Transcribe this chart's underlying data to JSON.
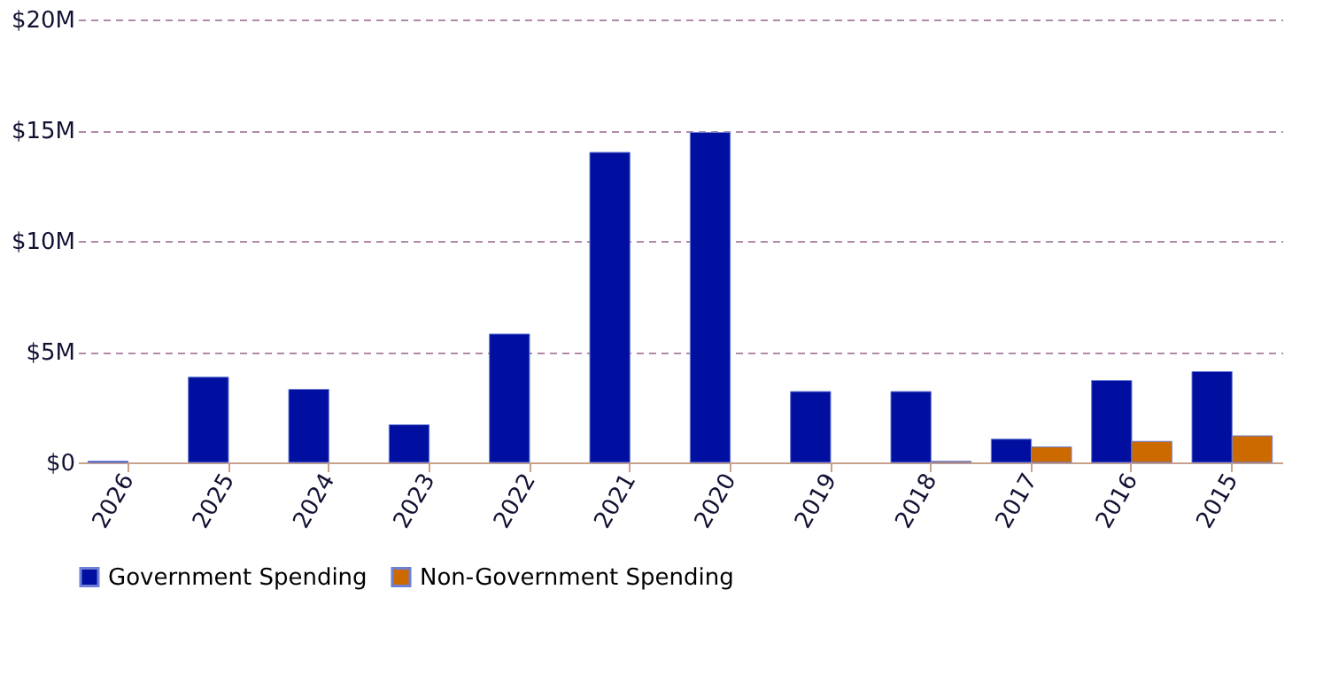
{
  "chart_data": {
    "type": "bar",
    "categories": [
      "2026",
      "2025",
      "2024",
      "2023",
      "2022",
      "2021",
      "2020",
      "2019",
      "2018",
      "2017",
      "2016",
      "2015"
    ],
    "series": [
      {
        "name": "Government Spending",
        "color": "#000f9f",
        "values": [
          0.05,
          3.85,
          3.3,
          1.7,
          5.8,
          14.0,
          14.9,
          3.2,
          3.2,
          1.05,
          3.7,
          4.1
        ]
      },
      {
        "name": "Non-Government Spending",
        "color": "#cc6a00",
        "values": [
          null,
          null,
          null,
          null,
          null,
          null,
          null,
          null,
          0.05,
          0.7,
          0.95,
          1.2
        ]
      }
    ],
    "ylim": [
      0,
      20
    ],
    "yticks": [
      {
        "value": 0,
        "label": "$0"
      },
      {
        "value": 5,
        "label": "$5M"
      },
      {
        "value": 10,
        "label": "$10M"
      },
      {
        "value": 15,
        "label": "$15M"
      },
      {
        "value": 20,
        "label": "$20M"
      }
    ],
    "grid": "y",
    "legend": "bottom"
  }
}
